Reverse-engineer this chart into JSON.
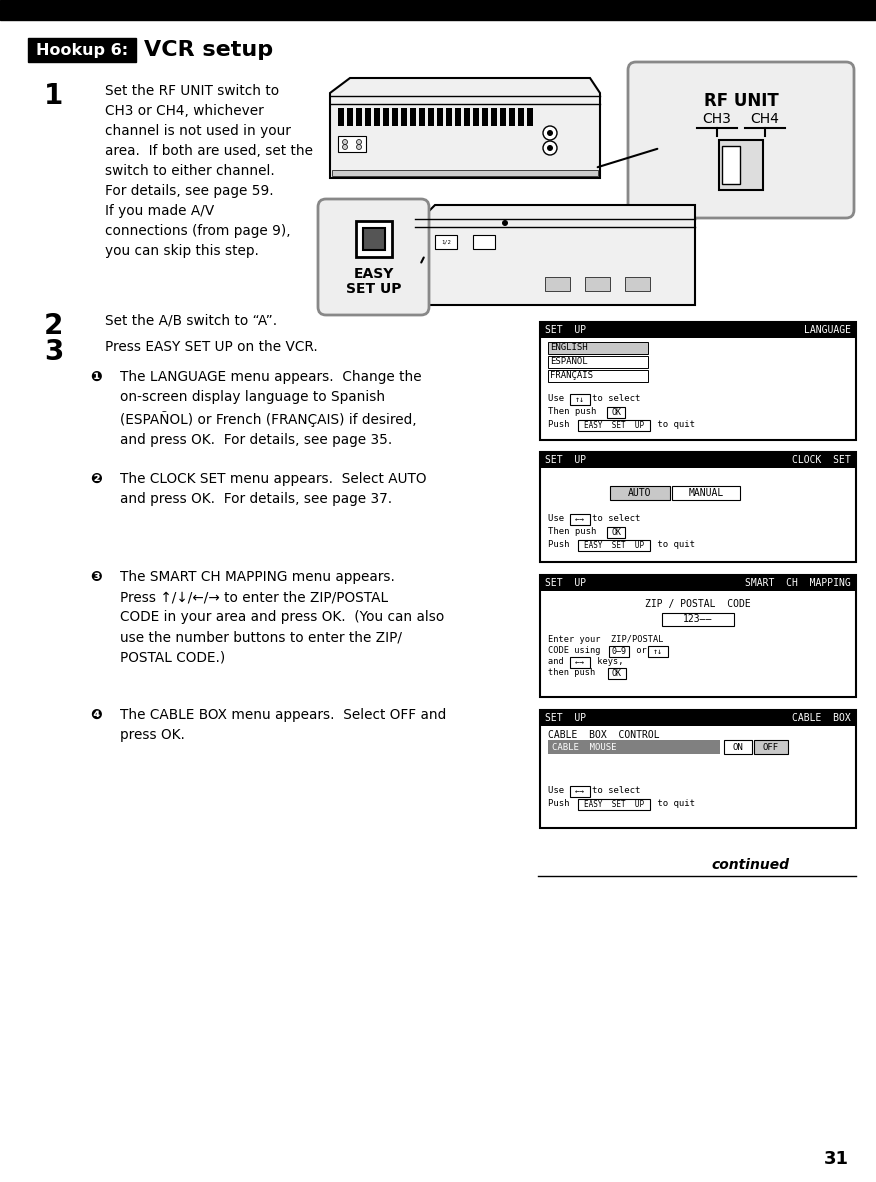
{
  "bg_color": "#ffffff",
  "page_number": "31",
  "title_box_text": "Hookup 6:",
  "title_text": "  VCR setup",
  "step1_num": "1",
  "step1_text": "Set the RF UNIT switch to\nCH3 or CH4, whichever\nchannel is not used in your\narea.  If both are used, set the\nswitch to either channel.\nFor details, see page 59.\nIf you made A/V\nconnections (from page 9),\nyou can skip this step.",
  "step2_num": "2",
  "step2_text": "Set the A/B switch to “A”.",
  "step3_num": "3",
  "step3_text": "Press EASY SET UP on the VCR.",
  "sub1_text": "The LANGUAGE menu appears.  Change the\non-screen display language to Spanish\n(ESPAÑOL) or French (FRANÇAIS) if desired,\nand press OK.  For details, see page 35.",
  "sub2_text": "The CLOCK SET menu appears.  Select AUTO\nand press OK.  For details, see page 37.",
  "sub3_text": "The SMART CH MAPPING menu appears.\nPress ↑/↓/←/→ to enter the ZIP/POSTAL\nCODE in your area and press OK.  (You can also\nuse the number buttons to enter the ZIP/\nPOSTAL CODE.)",
  "sub4_text": "The CABLE BOX menu appears.  Select OFF and\npress OK.",
  "continued_text": "continued",
  "top_bar_color": "#000000",
  "screen_border": "#000000",
  "screen_header_bg": "#000000",
  "screen_header_fg": "#ffffff",
  "lang_highlight": "#c8c8c8",
  "cable_mouse_bg": "#808080"
}
